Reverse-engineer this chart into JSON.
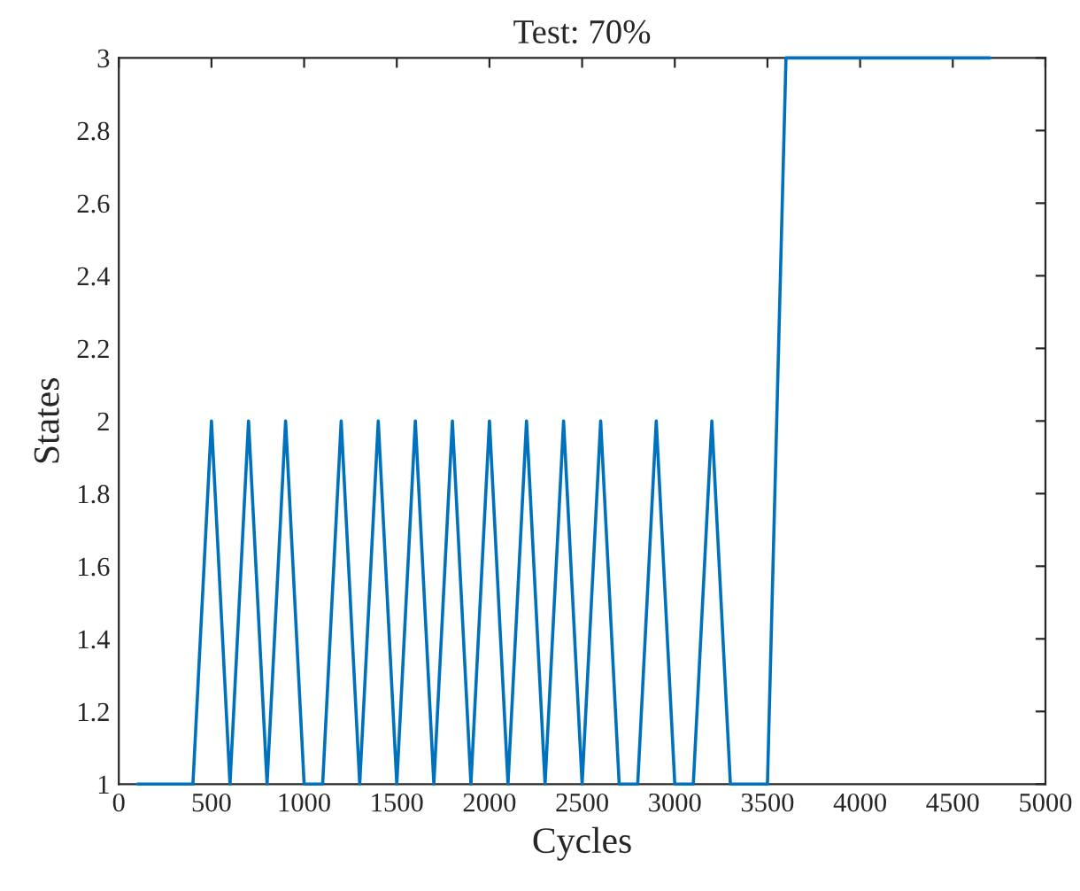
{
  "chart_data": {
    "type": "line",
    "title": "Test: 70%",
    "xlabel": "Cycles",
    "ylabel": "States",
    "x": [
      100,
      200,
      300,
      400,
      500,
      600,
      700,
      800,
      900,
      1000,
      1100,
      1200,
      1300,
      1400,
      1500,
      1600,
      1700,
      1800,
      1900,
      2000,
      2100,
      2200,
      2300,
      2400,
      2500,
      2600,
      2700,
      2800,
      2900,
      3000,
      3100,
      3200,
      3300,
      3400,
      3500,
      3600,
      3700,
      3800,
      3900,
      4000,
      4100,
      4200,
      4300,
      4400,
      4500,
      4600,
      4700
    ],
    "series": [
      {
        "color": "#0072bd",
        "values": [
          1,
          1,
          1,
          1,
          2,
          1,
          2,
          1,
          2,
          1,
          1,
          2,
          1,
          2,
          1,
          2,
          1,
          2,
          1,
          2,
          1,
          2,
          1,
          2,
          1,
          2,
          1,
          1,
          2,
          1,
          1,
          2,
          1,
          1,
          1,
          3,
          3,
          3,
          3,
          3,
          3,
          3,
          3,
          3,
          3,
          3,
          3
        ]
      }
    ],
    "xlim": [
      0,
      5000
    ],
    "xticks": [
      0,
      500,
      1000,
      1500,
      2000,
      2500,
      3000,
      3500,
      4000,
      4500,
      5000
    ],
    "ylim": [
      1,
      3
    ],
    "yticks": [
      1,
      1.2,
      1.4,
      1.6,
      1.8,
      2,
      2.2,
      2.4,
      2.6,
      2.8,
      3
    ],
    "grid": false,
    "marker": "none",
    "line_style": "solid"
  }
}
